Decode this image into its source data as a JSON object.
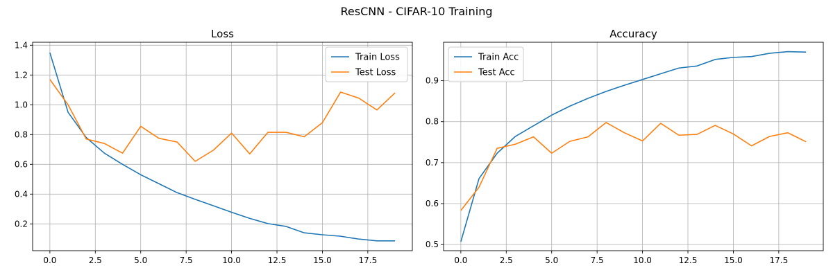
{
  "figure": {
    "suptitle": "ResCNN - CIFAR-10 Training"
  },
  "colors": {
    "train": "#1f77b4",
    "test": "#ff7f0e",
    "grid": "#b0b0b0",
    "axes": "#000000"
  },
  "chart_data": [
    {
      "type": "line",
      "title": "Loss",
      "xlabel": "",
      "ylabel": "",
      "xlim": [
        -0.95,
        19.95
      ],
      "ylim": [
        0.02,
        1.42
      ],
      "grid": true,
      "legend_position": "top-right",
      "xticks": [
        0,
        2.5,
        5,
        7.5,
        10,
        12.5,
        15,
        17.5
      ],
      "xtick_labels": [
        "0.0",
        "2.5",
        "5.0",
        "7.5",
        "10.0",
        "12.5",
        "15.0",
        "17.5"
      ],
      "yticks": [
        0.2,
        0.4,
        0.6,
        0.8,
        1.0,
        1.2,
        1.4
      ],
      "ytick_labels": [
        "0.2",
        "0.4",
        "0.6",
        "0.8",
        "1.0",
        "1.2",
        "1.4"
      ],
      "x": [
        0,
        1,
        2,
        3,
        4,
        5,
        6,
        7,
        8,
        9,
        10,
        11,
        12,
        13,
        14,
        15,
        16,
        17,
        18,
        19
      ],
      "series": [
        {
          "name": "Train Loss",
          "color_key": "train",
          "values": [
            1.35,
            0.95,
            0.78,
            0.675,
            0.6,
            0.53,
            0.47,
            0.41,
            0.365,
            0.322,
            0.278,
            0.237,
            0.202,
            0.183,
            0.14,
            0.127,
            0.117,
            0.098,
            0.086,
            0.086
          ]
        },
        {
          "name": "Test Loss",
          "color_key": "test",
          "values": [
            1.17,
            1.0,
            0.77,
            0.74,
            0.675,
            0.855,
            0.775,
            0.75,
            0.62,
            0.695,
            0.81,
            0.67,
            0.815,
            0.815,
            0.785,
            0.88,
            1.085,
            1.045,
            0.965,
            1.08
          ]
        }
      ]
    },
    {
      "type": "line",
      "title": "Accuracy",
      "xlabel": "",
      "ylabel": "",
      "xlim": [
        -0.95,
        19.95
      ],
      "ylim": [
        0.485,
        0.994
      ],
      "grid": true,
      "legend_position": "top-left",
      "xticks": [
        0,
        2.5,
        5,
        7.5,
        10,
        12.5,
        15,
        17.5
      ],
      "xtick_labels": [
        "0.0",
        "2.5",
        "5.0",
        "7.5",
        "10.0",
        "12.5",
        "15.0",
        "17.5"
      ],
      "yticks": [
        0.5,
        0.6,
        0.7,
        0.8,
        0.9
      ],
      "ytick_labels": [
        "0.5",
        "0.6",
        "0.7",
        "0.8",
        "0.9"
      ],
      "x": [
        0,
        1,
        2,
        3,
        4,
        5,
        6,
        7,
        8,
        9,
        10,
        11,
        12,
        13,
        14,
        15,
        16,
        17,
        18,
        19
      ],
      "series": [
        {
          "name": "Train Acc",
          "color_key": "train",
          "values": [
            0.507,
            0.661,
            0.723,
            0.764,
            0.79,
            0.816,
            0.838,
            0.857,
            0.874,
            0.889,
            0.903,
            0.917,
            0.931,
            0.936,
            0.952,
            0.957,
            0.959,
            0.967,
            0.971,
            0.97
          ]
        },
        {
          "name": "Test Acc",
          "color_key": "test",
          "values": [
            0.583,
            0.64,
            0.735,
            0.745,
            0.763,
            0.723,
            0.752,
            0.763,
            0.798,
            0.773,
            0.753,
            0.796,
            0.767,
            0.769,
            0.791,
            0.77,
            0.741,
            0.764,
            0.773,
            0.751
          ]
        }
      ]
    }
  ]
}
